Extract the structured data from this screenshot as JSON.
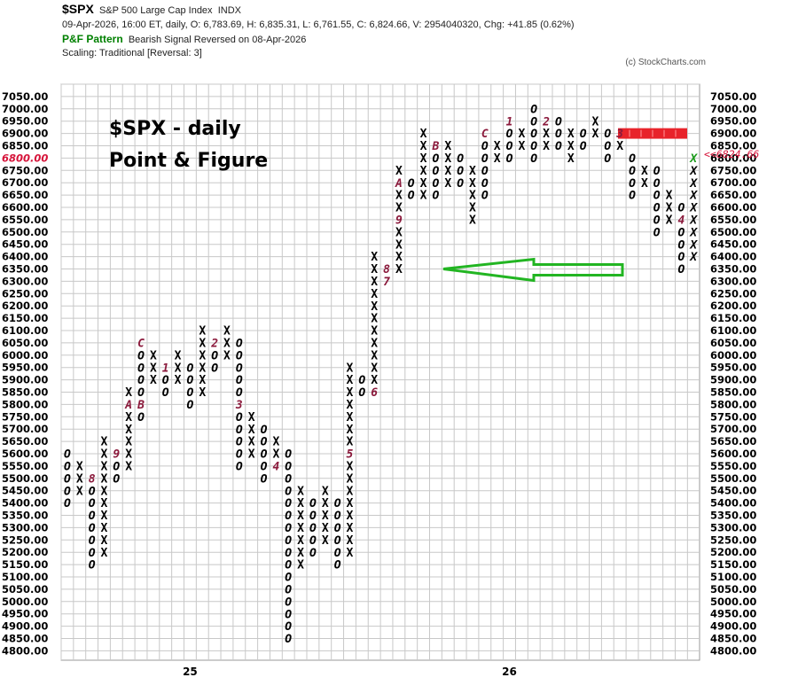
{
  "header": {
    "symbol": "$SPX",
    "name": "S&P 500 Large Cap Index",
    "exchange": "INDX",
    "quote_line": "09-Apr-2026, 16:00 ET, daily, O: 6,783.69, H: 6,835.31, L: 6,761.55, C: 6,824.66, V: 2954040320, Chg: +41.85 (0.62%)",
    "pattern_label": "P&F Pattern",
    "pattern_text": "Bearish Signal Reversed on 08-Apr-2026",
    "scaling": "Scaling: Traditional [Reversal: 3]",
    "copyright": "(c) StockCharts.com"
  },
  "chart_data": {
    "type": "point-and-figure",
    "title_lines": [
      "$SPX - daily",
      "Point & Figure"
    ],
    "box_size": 50,
    "reversal": 3,
    "y_range": [
      4800,
      7050
    ],
    "grid": true,
    "x_labels": [
      {
        "col": 10,
        "label": "25"
      },
      {
        "col": 36,
        "label": "26"
      }
    ],
    "columns": [
      {
        "type": "O",
        "low": 5400,
        "high": 5600
      },
      {
        "type": "X",
        "low": 5450,
        "high": 5550
      },
      {
        "type": "O",
        "low": 5150,
        "high": 5500,
        "marks": [
          {
            "price": 5500,
            "label": "8"
          }
        ]
      },
      {
        "type": "X",
        "low": 5200,
        "high": 5650
      },
      {
        "type": "O",
        "low": 5500,
        "high": 5600,
        "marks": [
          {
            "price": 5600,
            "label": "9"
          }
        ]
      },
      {
        "type": "X",
        "low": 5550,
        "high": 5850,
        "marks": [
          {
            "price": 5800,
            "label": "A"
          }
        ]
      },
      {
        "type": "O",
        "low": 5750,
        "high": 6050,
        "marks": [
          {
            "price": 5800,
            "label": "B"
          },
          {
            "price": 6050,
            "label": "C"
          }
        ]
      },
      {
        "type": "X",
        "low": 5900,
        "high": 6000
      },
      {
        "type": "O",
        "low": 5850,
        "high": 5950,
        "marks": [
          {
            "price": 5950,
            "label": "1"
          }
        ]
      },
      {
        "type": "X",
        "low": 5900,
        "high": 6000
      },
      {
        "type": "O",
        "low": 5800,
        "high": 5950
      },
      {
        "type": "X",
        "low": 5850,
        "high": 6100
      },
      {
        "type": "O",
        "low": 5950,
        "high": 6050,
        "marks": [
          {
            "price": 6050,
            "label": "2"
          }
        ]
      },
      {
        "type": "X",
        "low": 6000,
        "high": 6100
      },
      {
        "type": "O",
        "low": 5550,
        "high": 6050,
        "marks": [
          {
            "price": 5800,
            "label": "3"
          }
        ]
      },
      {
        "type": "X",
        "low": 5600,
        "high": 5750
      },
      {
        "type": "O",
        "low": 5500,
        "high": 5700
      },
      {
        "type": "X",
        "low": 5550,
        "high": 5650,
        "marks": [
          {
            "price": 5550,
            "label": "4"
          }
        ]
      },
      {
        "type": "O",
        "low": 4850,
        "high": 5600
      },
      {
        "type": "X",
        "low": 5150,
        "high": 5450
      },
      {
        "type": "O",
        "low": 5200,
        "high": 5400
      },
      {
        "type": "X",
        "low": 5250,
        "high": 5450
      },
      {
        "type": "O",
        "low": 5150,
        "high": 5400
      },
      {
        "type": "X",
        "low": 5200,
        "high": 5950,
        "marks": [
          {
            "price": 5600,
            "label": "5"
          }
        ]
      },
      {
        "type": "O",
        "low": 5850,
        "high": 5900
      },
      {
        "type": "X",
        "low": 5850,
        "high": 6400,
        "marks": [
          {
            "price": 5850,
            "label": "6"
          }
        ]
      },
      {
        "type": "O",
        "low": 6300,
        "high": 6350,
        "marks": [
          {
            "price": 6300,
            "label": "7"
          },
          {
            "price": 6350,
            "label": "8"
          }
        ]
      },
      {
        "type": "X",
        "low": 6350,
        "high": 6750,
        "marks": [
          {
            "price": 6550,
            "label": "9"
          },
          {
            "price": 6700,
            "label": "A"
          }
        ]
      },
      {
        "type": "O",
        "low": 6650,
        "high": 6700
      },
      {
        "type": "X",
        "low": 6650,
        "high": 6900
      },
      {
        "type": "O",
        "low": 6650,
        "high": 6850,
        "marks": [
          {
            "price": 6850,
            "label": "B"
          }
        ]
      },
      {
        "type": "X",
        "low": 6700,
        "high": 6850
      },
      {
        "type": "O",
        "low": 6700,
        "high": 6800
      },
      {
        "type": "X",
        "low": 6550,
        "high": 6750
      },
      {
        "type": "O",
        "low": 6650,
        "high": 6900,
        "marks": [
          {
            "price": 6900,
            "label": "C"
          }
        ]
      },
      {
        "type": "X",
        "low": 6800,
        "high": 6850
      },
      {
        "type": "O",
        "low": 6800,
        "high": 6950,
        "marks": [
          {
            "price": 6950,
            "label": "1"
          }
        ]
      },
      {
        "type": "X",
        "low": 6850,
        "high": 6900
      },
      {
        "type": "O",
        "low": 6800,
        "high": 7000
      },
      {
        "type": "X",
        "low": 6850,
        "high": 6950,
        "marks": [
          {
            "price": 6950,
            "label": "2"
          }
        ]
      },
      {
        "type": "O",
        "low": 6850,
        "high": 6950
      },
      {
        "type": "X",
        "low": 6800,
        "high": 6900
      },
      {
        "type": "O",
        "low": 6850,
        "high": 6900
      },
      {
        "type": "X",
        "low": 6900,
        "high": 6950
      },
      {
        "type": "O",
        "low": 6800,
        "high": 6900
      },
      {
        "type": "X",
        "low": 6850,
        "high": 6900,
        "marks": [
          {
            "price": 6900,
            "label": "3"
          }
        ]
      },
      {
        "type": "O",
        "low": 6650,
        "high": 6800
      },
      {
        "type": "X",
        "low": 6700,
        "high": 6750
      },
      {
        "type": "O",
        "low": 6500,
        "high": 6750
      },
      {
        "type": "X",
        "low": 6550,
        "high": 6650
      },
      {
        "type": "O",
        "low": 6350,
        "high": 6600,
        "marks": [
          {
            "price": 6550,
            "label": "4"
          }
        ]
      },
      {
        "type": "X",
        "low": 6400,
        "high": 6800,
        "current": true
      }
    ],
    "current_price": 6824.66,
    "current_price_label": "<<6824.66",
    "annotations": [
      {
        "type": "price-objective-band",
        "price": 6850,
        "color": "#e8232a"
      },
      {
        "type": "arrow",
        "color": "#22b522",
        "direction": "left",
        "price": 6350
      }
    ],
    "axis_labels": [
      "7050.00",
      "7000.00",
      "6950.00",
      "6900.00",
      "6850.00",
      "6800.00",
      "6750.00",
      "6700.00",
      "6650.00",
      "6600.00",
      "6550.00",
      "6500.00",
      "6450.00",
      "6400.00",
      "6350.00",
      "6300.00",
      "6250.00",
      "6200.00",
      "6150.00",
      "6100.00",
      "6050.00",
      "6000.00",
      "5950.00",
      "5900.00",
      "5850.00",
      "5800.00",
      "5750.00",
      "5700.00",
      "5650.00",
      "5600.00",
      "5550.00",
      "5500.00",
      "5450.00",
      "5400.00",
      "5350.00",
      "5300.00",
      "5250.00",
      "5200.00",
      "5150.00",
      "5100.00",
      "5050.00",
      "5000.00",
      "4950.00",
      "4900.00",
      "4850.00",
      "4800.00"
    ],
    "highlight_label": "6800.00",
    "colors": {
      "x": "#000000",
      "o": "#000000",
      "marker": "#8b1a3c",
      "current": "#1a9a1a",
      "grid": "#c8c8c8",
      "price_red": "#d6143a"
    }
  }
}
